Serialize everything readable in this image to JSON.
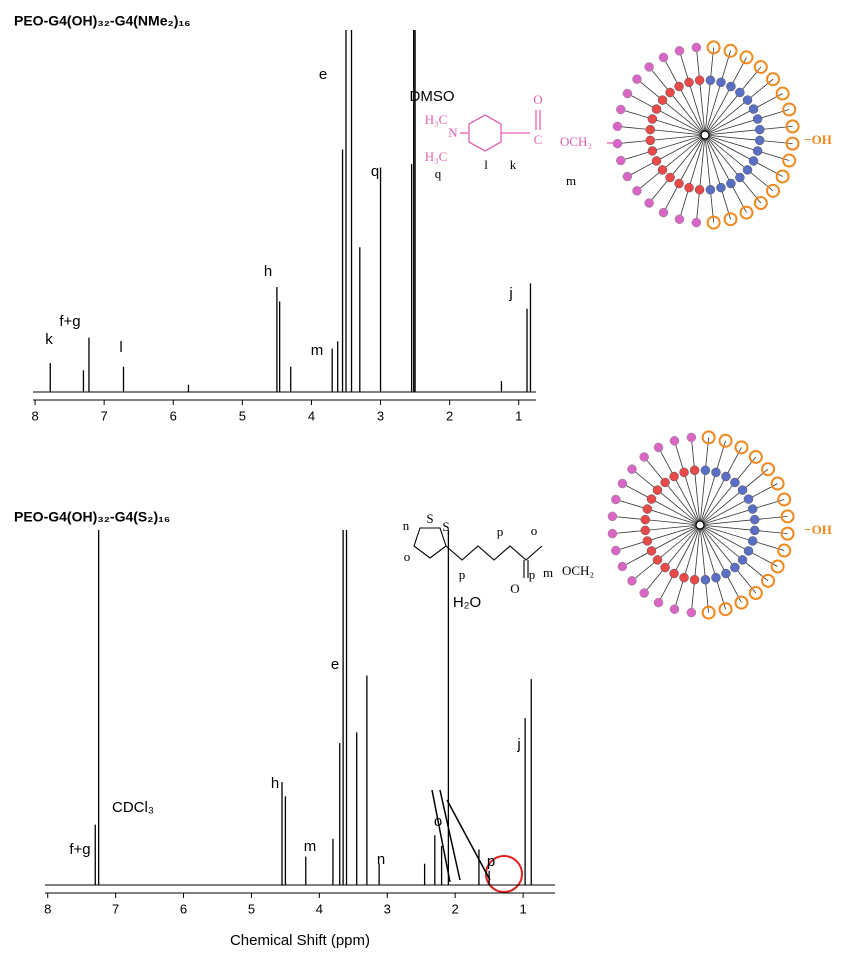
{
  "chart_data": [
    {
      "type": "spectrum",
      "title": "PEO-G4(OH)₃₂-G4(NMe₂)₁₆",
      "color": "#000000",
      "xlim": [
        8.03,
        0.75
      ],
      "xticks": [
        8,
        7,
        6,
        5,
        4,
        3,
        2,
        1
      ],
      "ylim": [
        0,
        100
      ],
      "x": [
        7.78,
        7.3,
        7.22,
        6.72,
        5.78,
        4.5,
        4.46,
        4.3,
        3.7,
        3.62,
        3.55,
        3.5,
        3.42,
        3.3,
        3.0,
        2.55,
        2.52,
        2.5,
        1.25,
        0.88,
        0.83
      ],
      "values": [
        8,
        6,
        15,
        7,
        2,
        29,
        25,
        7,
        12,
        14,
        67,
        100,
        100,
        40,
        62,
        63,
        100,
        100,
        3,
        23,
        30
      ],
      "annotations": [
        "k",
        "f+g",
        "l",
        "h",
        "m",
        "e",
        "DMSO",
        "q",
        "j"
      ],
      "structure": [
        "H₃C",
        "N",
        "H₃C",
        "O",
        "C",
        "OCH₂",
        "q",
        "l",
        "k",
        "m",
        "−OH"
      ]
    },
    {
      "type": "spectrum",
      "title": "PEO-G4(OH)₃₂-G4(S₂)₁₆",
      "color": "#000000",
      "xlim": [
        8.04,
        0.53
      ],
      "xticks": [
        8,
        7,
        6,
        5,
        4,
        3,
        2,
        1
      ],
      "ylim": [
        0,
        100
      ],
      "xlabel": "Chemical Shift (ppm)",
      "x": [
        7.3,
        7.25,
        4.55,
        4.5,
        4.2,
        3.8,
        3.7,
        3.65,
        3.6,
        3.45,
        3.3,
        3.12,
        2.45,
        2.3,
        2.2,
        2.1,
        1.65,
        1.5,
        0.97,
        0.88
      ],
      "values": [
        17,
        100,
        29,
        25,
        8,
        13,
        40,
        100,
        100,
        43,
        59,
        6,
        6,
        14,
        11,
        100,
        10,
        4,
        47,
        58
      ],
      "annotations": [
        "f+g",
        "CDCl₃",
        "h",
        "m",
        "e",
        "H₂O",
        "n",
        "o",
        "p",
        "j"
      ],
      "structure": [
        "n",
        "S",
        "S",
        "o",
        "p",
        "p",
        "p",
        "o",
        "O",
        "OCH₂",
        "m",
        "−OH"
      ]
    }
  ]
}
